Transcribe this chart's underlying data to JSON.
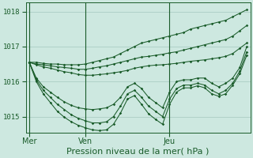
{
  "background_color": "#cde8e0",
  "line_color": "#1a5c2a",
  "grid_color": "#9abfb5",
  "xlabel": "Pression niveau de la mer( hPa )",
  "xlabel_fontsize": 8,
  "ylim": [
    1014.55,
    1018.25
  ],
  "yticks": [
    1015,
    1016,
    1017,
    1018
  ],
  "xtick_labels": [
    "Mer",
    "Ven",
    "Jeu"
  ],
  "xtick_positions": [
    0,
    8,
    20
  ],
  "vline_positions": [
    0,
    8,
    20
  ],
  "n_points": 32,
  "series": [
    {
      "type": "nearly_straight_high",
      "data": [
        1016.55,
        1016.55,
        1016.52,
        1016.5,
        1016.5,
        1016.48,
        1016.48,
        1016.48,
        1016.5,
        1016.55,
        1016.6,
        1016.65,
        1016.7,
        1016.8,
        1016.9,
        1017.0,
        1017.1,
        1017.15,
        1017.2,
        1017.25,
        1017.3,
        1017.35,
        1017.4,
        1017.5,
        1017.55,
        1017.6,
        1017.65,
        1017.7,
        1017.75,
        1017.85,
        1017.95,
        1018.05
      ]
    },
    {
      "type": "nearly_straight_mid1",
      "data": [
        1016.55,
        1016.5,
        1016.48,
        1016.45,
        1016.42,
        1016.4,
        1016.38,
        1016.35,
        1016.35,
        1016.38,
        1016.42,
        1016.45,
        1016.5,
        1016.55,
        1016.6,
        1016.65,
        1016.7,
        1016.72,
        1016.75,
        1016.78,
        1016.82,
        1016.85,
        1016.9,
        1016.95,
        1017.0,
        1017.05,
        1017.1,
        1017.15,
        1017.2,
        1017.3,
        1017.45,
        1017.6
      ]
    },
    {
      "type": "nearly_straight_mid2",
      "data": [
        1016.55,
        1016.48,
        1016.42,
        1016.38,
        1016.33,
        1016.28,
        1016.25,
        1016.2,
        1016.18,
        1016.18,
        1016.2,
        1016.22,
        1016.25,
        1016.28,
        1016.32,
        1016.38,
        1016.42,
        1016.45,
        1016.47,
        1016.48,
        1016.5,
        1016.52,
        1016.55,
        1016.58,
        1016.6,
        1016.62,
        1016.65,
        1016.68,
        1016.72,
        1016.8,
        1016.95,
        1017.1
      ]
    },
    {
      "type": "wavy_upper",
      "data": [
        1016.55,
        1016.1,
        1015.85,
        1015.7,
        1015.55,
        1015.42,
        1015.32,
        1015.25,
        1015.22,
        1015.2,
        1015.22,
        1015.25,
        1015.35,
        1015.55,
        1015.85,
        1015.95,
        1015.8,
        1015.55,
        1015.4,
        1015.25,
        1015.7,
        1016.0,
        1016.05,
        1016.05,
        1016.1,
        1016.1,
        1015.95,
        1015.85,
        1015.95,
        1016.1,
        1016.4,
        1017.0
      ]
    },
    {
      "type": "wavy_mid",
      "data": [
        1016.55,
        1016.05,
        1015.75,
        1015.55,
        1015.35,
        1015.2,
        1015.05,
        1014.95,
        1014.88,
        1014.82,
        1014.82,
        1014.85,
        1015.0,
        1015.3,
        1015.65,
        1015.75,
        1015.55,
        1015.3,
        1015.15,
        1015.0,
        1015.5,
        1015.8,
        1015.9,
        1015.9,
        1015.95,
        1015.9,
        1015.75,
        1015.65,
        1015.75,
        1015.95,
        1016.3,
        1016.85
      ]
    },
    {
      "type": "wavy_low",
      "data": [
        1016.55,
        1016.0,
        1015.65,
        1015.4,
        1015.15,
        1014.98,
        1014.85,
        1014.75,
        1014.68,
        1014.62,
        1014.6,
        1014.62,
        1014.78,
        1015.1,
        1015.5,
        1015.6,
        1015.35,
        1015.08,
        1014.92,
        1014.78,
        1015.35,
        1015.7,
        1015.82,
        1015.82,
        1015.88,
        1015.82,
        1015.65,
        1015.58,
        1015.65,
        1015.9,
        1016.22,
        1016.75
      ]
    }
  ]
}
